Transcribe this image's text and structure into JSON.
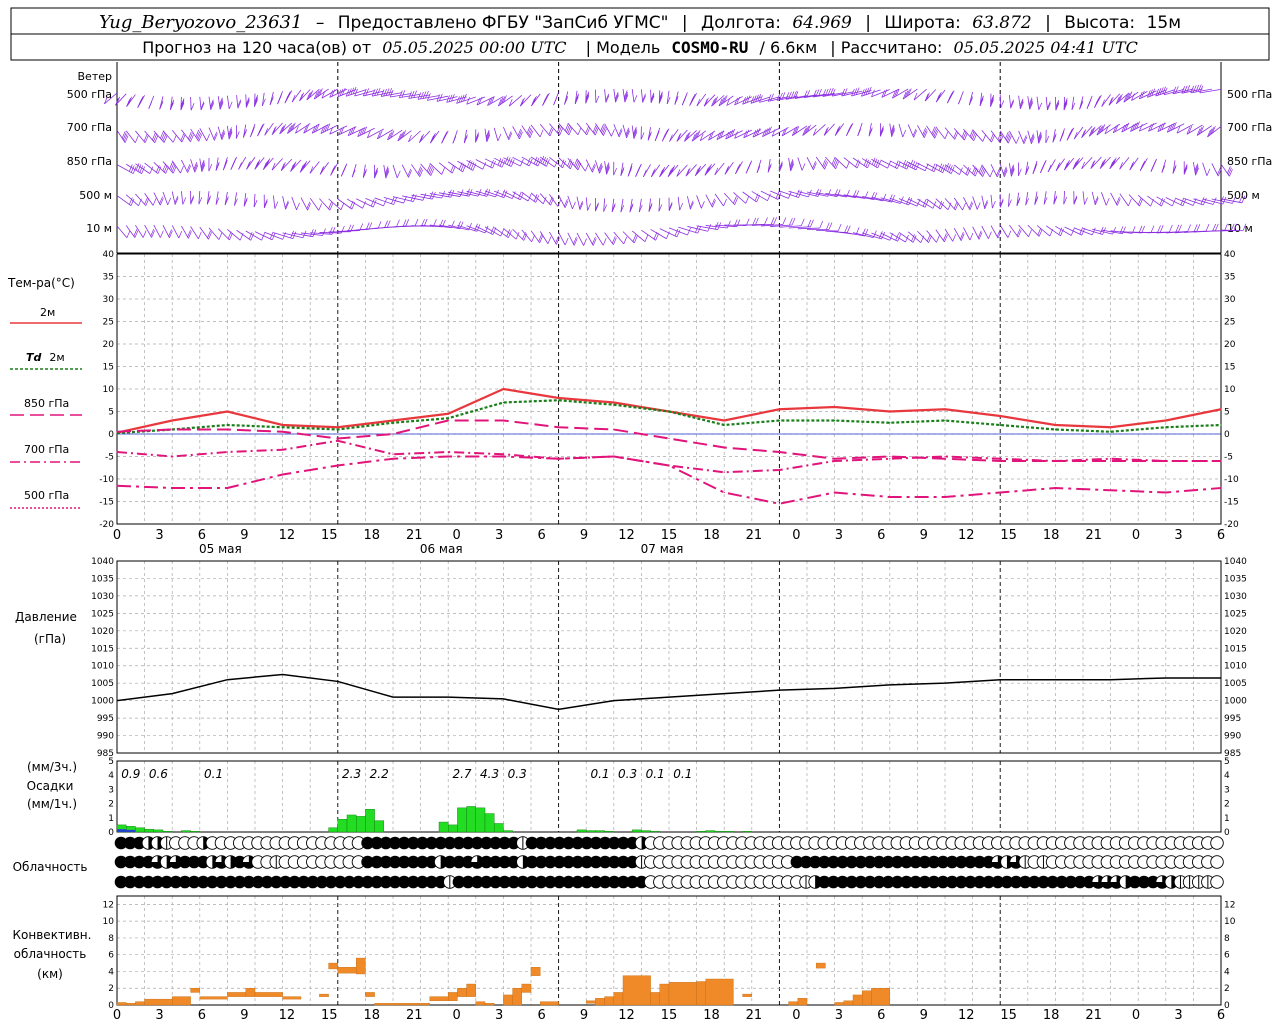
{
  "header": {
    "station": "Yug_Beryozovo_23631",
    "dash": "–",
    "provider": "Предоставлено ФГБУ \"ЗапСиб УГМС\"",
    "lon_label": "Долгота:",
    "lon": "64.969",
    "lat_label": "Широта:",
    "lat": "63.872",
    "alt_label": "Высота:",
    "alt": "15м",
    "forecast_label": "Прогноз на 120 часа(ов) от",
    "issue_time": "05.05.2025 00:00 UTC",
    "model_label": "| Модель",
    "model": "COSMO-RU",
    "resolution": "/ 6.6км",
    "computed_label": "| Рассчитано:",
    "computed_time": "05.05.2025 04:41 UTC",
    "sep": "|"
  },
  "colors": {
    "t2m": "#e8383d",
    "td2m": "#1a7f1a",
    "isobaric": "#e0147a",
    "wind": "#8a2be2",
    "precip": "#22dd22",
    "precip_blue": "#2244cc",
    "convective": "#f08a28",
    "pressure": "#000000",
    "zero_line": "#2233cc"
  },
  "x_axis": {
    "ticks": [
      "0",
      "3",
      "6",
      "9",
      "12",
      "15",
      "18",
      "21",
      "0",
      "3",
      "6",
      "9",
      "12",
      "15",
      "18",
      "21",
      "0",
      "3",
      "6",
      "9",
      "12",
      "15",
      "18",
      "21",
      "0",
      "3",
      "6"
    ],
    "dates": [
      "05 мая",
      "06 мая",
      "07 мая"
    ]
  },
  "wind_panel": {
    "title": "Ветер",
    "levels": [
      "500 гПа",
      "700 гПа",
      "850 гПа",
      "500 м",
      "10 м"
    ],
    "note": "wind barbs at 1-hour steps"
  },
  "chart_data": [
    {
      "type": "line",
      "title": "Тем-ра(°C)",
      "x_hours": [
        0,
        6,
        12,
        18,
        24,
        30,
        36,
        42,
        48,
        54,
        60,
        66,
        72,
        78,
        84,
        90,
        96,
        102,
        108,
        114,
        120
      ],
      "ylim": [
        -20,
        40
      ],
      "yticks": [
        -20,
        -15,
        -10,
        -5,
        0,
        5,
        10,
        15,
        20,
        25,
        30,
        35,
        40
      ],
      "series": [
        {
          "name": "2м",
          "values": [
            0.3,
            3,
            5,
            2,
            1.5,
            3,
            4.5,
            10,
            8,
            7,
            5,
            3,
            5.5,
            6,
            5,
            5.5,
            4,
            2,
            1.5,
            3,
            5.5
          ]
        },
        {
          "name": "Td 2м",
          "values": [
            0.2,
            1,
            2,
            1.5,
            1,
            2.5,
            3.5,
            7,
            7.5,
            6.5,
            5,
            2,
            3,
            3,
            2.5,
            3,
            2,
            1,
            0.5,
            1.5,
            2
          ]
        },
        {
          "name": "850 гПа",
          "values": [
            0.5,
            1,
            1,
            0.5,
            -1,
            0,
            3,
            3,
            1.5,
            1,
            -1,
            -3,
            -4,
            -5.5,
            -5,
            -5.5,
            -6,
            -6,
            -6,
            -6,
            -6
          ]
        },
        {
          "name": "700 гПа",
          "values": [
            -4,
            -5,
            -4,
            -3.5,
            -1.5,
            -4.5,
            -4,
            -4.5,
            -5.5,
            -5,
            -7,
            -8.5,
            -8,
            -6,
            -5.5,
            -5,
            -5.5,
            -6,
            -5.5,
            -6,
            -6
          ]
        },
        {
          "name": "500 гПа",
          "values": [
            -11.5,
            -12,
            -12,
            -9,
            -7,
            -5.5,
            -5,
            -5,
            -5.5,
            -5,
            -7,
            -13,
            -15.5,
            -13,
            -14,
            -14,
            -13,
            -12,
            -12.5,
            -13,
            -12
          ]
        }
      ],
      "legend_labels": [
        "2м",
        "Td",
        "2м",
        "850 гПа",
        "700 гПа",
        "500 гПа"
      ]
    },
    {
      "type": "line",
      "title": "Давление",
      "ylabel": "(гПа)",
      "x_hours": [
        0,
        6,
        12,
        18,
        24,
        30,
        36,
        42,
        48,
        54,
        60,
        66,
        72,
        78,
        84,
        90,
        96,
        102,
        108,
        114,
        120
      ],
      "ylim": [
        985,
        1040
      ],
      "yticks": [
        985,
        990,
        995,
        1000,
        1005,
        1010,
        1015,
        1020,
        1025,
        1030,
        1035,
        1040
      ],
      "values": [
        1000,
        1002,
        1006,
        1007.5,
        1005.5,
        1001,
        1001,
        1000.5,
        997.5,
        1000,
        1001,
        1002,
        1003,
        1003.5,
        1004.5,
        1005,
        1006,
        1006,
        1006,
        1006.5,
        1006.5
      ]
    },
    {
      "type": "bar",
      "title": "Осадки",
      "ylabel": "(мм/3ч.) (мм/1ч.)",
      "ylim": [
        0,
        5
      ],
      "yticks": [
        0,
        1,
        2,
        3,
        4,
        5
      ],
      "x_hours": [
        1,
        2,
        3,
        4,
        5,
        6,
        8,
        9,
        24,
        25,
        26,
        27,
        28,
        29,
        36,
        37,
        38,
        39,
        40,
        41,
        42,
        43,
        51,
        52,
        53,
        54,
        57,
        58,
        59,
        64,
        65,
        66,
        67,
        69
      ],
      "values": [
        0.5,
        0.4,
        0.3,
        0.2,
        0.15,
        0.05,
        0.1,
        0.05,
        0.3,
        0.9,
        1.2,
        1.1,
        1.6,
        0.8,
        0.7,
        0.5,
        1.7,
        1.8,
        1.7,
        1.3,
        0.6,
        0.1,
        0.15,
        0.1,
        0.1,
        0.05,
        0.15,
        0.1,
        0.05,
        0.05,
        0.1,
        0.05,
        0.05,
        0.05
      ],
      "blue_x_hours": [
        1,
        2
      ],
      "blue_values": [
        0.2,
        0.15
      ],
      "totals": [
        {
          "hour": 1.5,
          "label": "0.9"
        },
        {
          "hour": 4.5,
          "label": "0.6"
        },
        {
          "hour": 10.5,
          "label": "0.1"
        },
        {
          "hour": 25.5,
          "label": "2.3"
        },
        {
          "hour": 28.5,
          "label": "2.2"
        },
        {
          "hour": 37.5,
          "label": "2.7"
        },
        {
          "hour": 40.5,
          "label": "4.3"
        },
        {
          "hour": 43.5,
          "label": "0.3"
        },
        {
          "hour": 52.5,
          "label": "0.1"
        },
        {
          "hour": 55.5,
          "label": "0.3"
        },
        {
          "hour": 58.5,
          "label": "0.1"
        },
        {
          "hour": 61.5,
          "label": "0.1"
        }
      ]
    },
    {
      "type": "table",
      "title": "Облачность",
      "legend": "0=clear,1=quarter,2=half,3=three-quarter,4=overcast",
      "rows": {
        "upper": "4442210002000000000000000004444444444444444414444444444442000000000000000000000000000000000000000000000000000000000000000",
        "middle": "4444323444232430010000000004444444424443444424444444444441000000000000000044444444444444444444443231010000000000000000000",
        "lower": "4444444444444444444444444444444444441444444444444444444444000000000000000001244444444444444444444444444444433324443211110"
      }
    },
    {
      "type": "bar",
      "title": "Конвективн. облачность (км)",
      "ylim": [
        0,
        13
      ],
      "yticks": [
        0,
        2,
        4,
        6,
        8,
        10,
        12
      ],
      "bars": [
        {
          "from": 0,
          "to": 1,
          "base": 0,
          "top": 0.3
        },
        {
          "from": 1,
          "to": 2,
          "base": 0,
          "top": 0.2
        },
        {
          "from": 2,
          "to": 3,
          "base": 0,
          "top": 0.4
        },
        {
          "from": 3,
          "to": 6,
          "base": 0,
          "top": 0.7
        },
        {
          "from": 6,
          "to": 8,
          "base": 0,
          "top": 1
        },
        {
          "from": 8,
          "to": 9,
          "base": 1.5,
          "top": 2
        },
        {
          "from": 9,
          "to": 12,
          "base": 0.7,
          "top": 1
        },
        {
          "from": 12,
          "to": 14,
          "base": 1,
          "top": 1.5
        },
        {
          "from": 14,
          "to": 15,
          "base": 1,
          "top": 2
        },
        {
          "from": 15,
          "to": 18,
          "base": 1,
          "top": 1.5
        },
        {
          "from": 18,
          "to": 20,
          "base": 0.7,
          "top": 1
        },
        {
          "from": 22,
          "to": 23,
          "base": 1,
          "top": 1.3
        },
        {
          "from": 23,
          "to": 24,
          "base": 4.3,
          "top": 5
        },
        {
          "from": 24,
          "to": 26,
          "base": 3.8,
          "top": 4.5
        },
        {
          "from": 26,
          "to": 27,
          "base": 3.7,
          "top": 5.6
        },
        {
          "from": 27,
          "to": 28,
          "base": 1,
          "top": 1.5
        },
        {
          "from": 28,
          "to": 34,
          "base": 0,
          "top": 0.2
        },
        {
          "from": 34,
          "to": 36,
          "base": 0.5,
          "top": 1
        },
        {
          "from": 36,
          "to": 37,
          "base": 0.5,
          "top": 1.5
        },
        {
          "from": 37,
          "to": 38,
          "base": 1,
          "top": 2
        },
        {
          "from": 38,
          "to": 39,
          "base": 1,
          "top": 2.5
        },
        {
          "from": 39,
          "to": 40,
          "base": 0,
          "top": 0.4
        },
        {
          "from": 40,
          "to": 41,
          "base": 0,
          "top": 0.2
        },
        {
          "from": 42,
          "to": 43,
          "base": 0,
          "top": 1.2
        },
        {
          "from": 43,
          "to": 44,
          "base": 0,
          "top": 2
        },
        {
          "from": 44,
          "to": 45,
          "base": 1.5,
          "top": 2.5
        },
        {
          "from": 45,
          "to": 46,
          "base": 3.5,
          "top": 4.5
        },
        {
          "from": 46,
          "to": 48,
          "base": 0,
          "top": 0.4
        },
        {
          "from": 51,
          "to": 52,
          "base": 0.2,
          "top": 0.5
        },
        {
          "from": 52,
          "to": 53,
          "base": 0,
          "top": 0.8
        },
        {
          "from": 53,
          "to": 54,
          "base": 0,
          "top": 1
        },
        {
          "from": 54,
          "to": 55,
          "base": 0,
          "top": 1.5
        },
        {
          "from": 55,
          "to": 58,
          "base": 0,
          "top": 3.5
        },
        {
          "from": 58,
          "to": 59,
          "base": 0,
          "top": 1.5
        },
        {
          "from": 59,
          "to": 60,
          "base": 0,
          "top": 2.5
        },
        {
          "from": 60,
          "to": 63,
          "base": 0,
          "top": 2.7
        },
        {
          "from": 63,
          "to": 64,
          "base": 0,
          "top": 2.8
        },
        {
          "from": 64,
          "to": 67,
          "base": 0,
          "top": 3.1
        },
        {
          "from": 68,
          "to": 69,
          "base": 1,
          "top": 1.3
        },
        {
          "from": 73,
          "to": 74,
          "base": 0,
          "top": 0.4
        },
        {
          "from": 74,
          "to": 75,
          "base": 0,
          "top": 0.8
        },
        {
          "from": 76,
          "to": 77,
          "base": 4.4,
          "top": 5
        },
        {
          "from": 78,
          "to": 79,
          "base": 0,
          "top": 0.3
        },
        {
          "from": 79,
          "to": 80,
          "base": 0,
          "top": 0.5
        },
        {
          "from": 80,
          "to": 81,
          "base": 0,
          "top": 1.2
        },
        {
          "from": 81,
          "to": 82,
          "base": 0,
          "top": 1.7
        },
        {
          "from": 82,
          "to": 84,
          "base": 0,
          "top": 2
        }
      ]
    }
  ]
}
